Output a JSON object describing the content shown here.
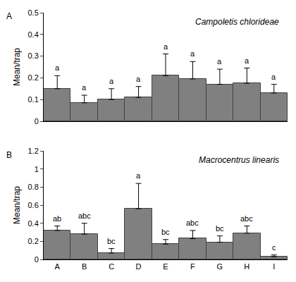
{
  "chart_data": [
    {
      "type": "bar",
      "panel_label": "A",
      "title": "Campoletis chlorideae",
      "y_label": "Mean/trap",
      "categories": [
        "A",
        "B",
        "C",
        "D",
        "E",
        "F",
        "G",
        "H",
        "I"
      ],
      "values": [
        0.15,
        0.085,
        0.1,
        0.11,
        0.21,
        0.195,
        0.17,
        0.175,
        0.13
      ],
      "errors": [
        0.06,
        0.035,
        0.05,
        0.05,
        0.1,
        0.08,
        0.07,
        0.07,
        0.04
      ],
      "letters": [
        "a",
        "a",
        "a",
        "a",
        "a",
        "a",
        "a",
        "a",
        "a"
      ],
      "color": "#808080",
      "ylim": [
        0,
        0.5
      ],
      "yticks": [
        0,
        0.1,
        0.2,
        0.3,
        0.4,
        0.5
      ],
      "grid": false,
      "tick_labels": "y"
    },
    {
      "type": "bar",
      "panel_label": "B",
      "title": "Macrocentrus linearis",
      "y_label": "Mean/trap",
      "categories": [
        "A",
        "B",
        "C",
        "D",
        "E",
        "F",
        "G",
        "H",
        "I"
      ],
      "values": [
        0.32,
        0.28,
        0.07,
        0.56,
        0.17,
        0.23,
        0.19,
        0.29,
        0.03
      ],
      "errors": [
        0.05,
        0.12,
        0.05,
        0.28,
        0.05,
        0.09,
        0.07,
        0.08,
        0.02
      ],
      "letters": [
        "ab",
        "abc",
        "bc",
        "a",
        "bc",
        "abc",
        "bc",
        "abc",
        "c"
      ],
      "color": "#808080",
      "ylim": [
        0,
        1.2
      ],
      "yticks": [
        0,
        0.2,
        0.4,
        0.6,
        0.8,
        1,
        1.2
      ],
      "grid": false
    }
  ]
}
